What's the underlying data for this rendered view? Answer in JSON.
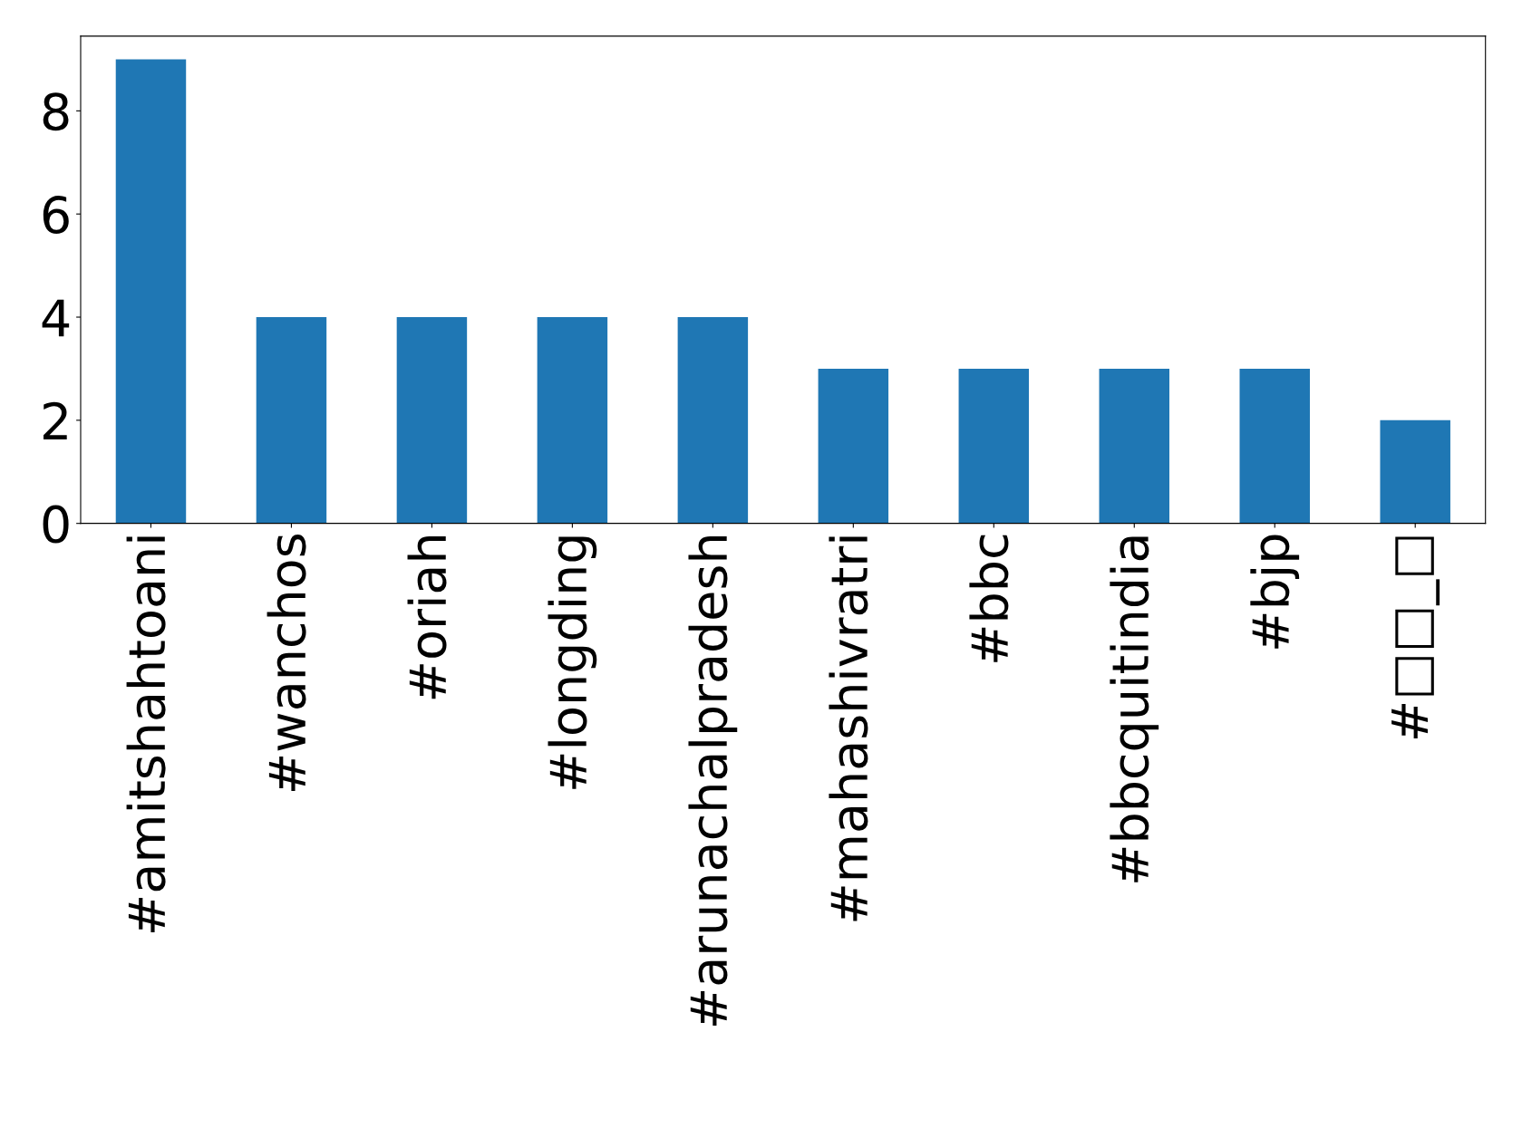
{
  "chart_data": {
    "type": "bar",
    "categories": [
      "#amitshahtoani",
      "#wanchos",
      "#oriah",
      "#longding",
      "#arunachalpradesh",
      "#mahashivratri",
      "#bbc",
      "#bbcquitindia",
      "#bjp",
      "#□□_□"
    ],
    "values": [
      9,
      4,
      4,
      4,
      4,
      3,
      3,
      3,
      3,
      2
    ],
    "color": "#1f77b4",
    "ylim": [
      0,
      9.45
    ],
    "yticks": [
      0,
      2,
      4,
      6,
      8
    ],
    "grid": false,
    "legend": false
  }
}
